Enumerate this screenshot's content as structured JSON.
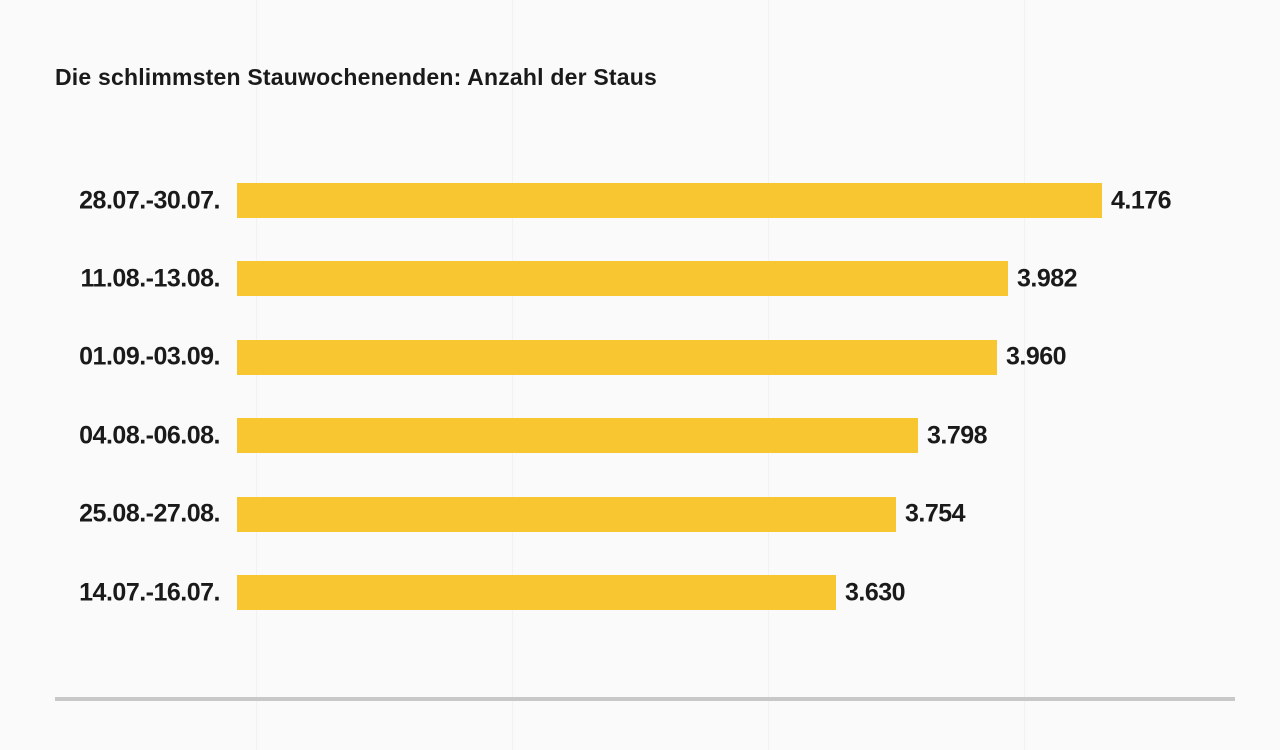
{
  "page": {
    "background_color": "#fafafa",
    "divider_color": "#c8c8c8"
  },
  "chart_data": {
    "type": "bar",
    "orientation": "horizontal",
    "title": "Die schlimmsten Stauwochenenden: Anzahl der Staus",
    "categories": [
      "28.07.-30.07.",
      "11.08.-13.08.",
      "01.09.-03.09.",
      "04.08.-06.08.",
      "25.08.-27.08.",
      "14.07.-16.07."
    ],
    "values": [
      4176,
      3982,
      3960,
      3798,
      3754,
      3630
    ],
    "value_labels": [
      "4.176",
      "3.982",
      "3.960",
      "3.798",
      "3.754",
      "3.630"
    ],
    "xlabel": "",
    "ylabel": "",
    "xlim": [
      2400,
      4176
    ],
    "grid": false,
    "legend": false,
    "bar_color": "#f8c630",
    "text_color": "#1a1a1a"
  }
}
